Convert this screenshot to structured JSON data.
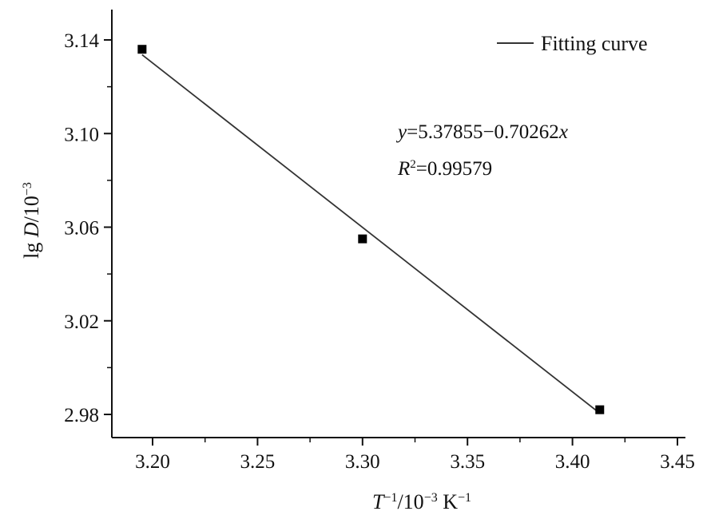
{
  "chart_data": {
    "type": "scatter",
    "xlabel": "T−1/10−3 K−1",
    "ylabel": "lg D/10−3",
    "xlim": [
      3.17,
      3.45
    ],
    "ylim": [
      2.97,
      3.145
    ],
    "x_ticks": [
      3.2,
      3.25,
      3.3,
      3.35,
      3.4,
      3.45
    ],
    "x_tick_labels": [
      "3.20",
      "3.25",
      "3.30",
      "3.35",
      "3.40",
      "3.45"
    ],
    "y_ticks": [
      2.98,
      3.02,
      3.06,
      3.1,
      3.14
    ],
    "y_tick_labels": [
      "2.98",
      "3.02",
      "3.06",
      "3.10",
      "3.14"
    ],
    "grid": false,
    "legend_position": "top-right",
    "series": [
      {
        "marker": "square",
        "color": "#000000",
        "points": [
          {
            "x": 3.195,
            "y": 3.136
          },
          {
            "x": 3.3,
            "y": 3.055
          },
          {
            "x": 3.413,
            "y": 2.982
          }
        ]
      },
      {
        "name": "Fitting curve",
        "kind": "fit-line",
        "color": "#333333",
        "intercept": 5.37855,
        "slope": -0.70262,
        "x_range": [
          3.195,
          3.413
        ]
      }
    ],
    "annotations": {
      "equation": "y=5.37855−0.70262x",
      "r_squared": "R2=0.99579"
    }
  }
}
